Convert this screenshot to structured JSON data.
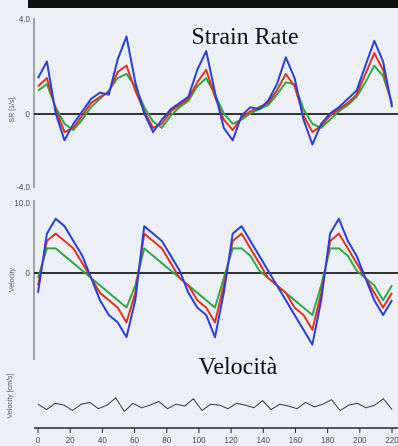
{
  "chart_data": [
    {
      "type": "line",
      "title": "Strain Rate",
      "ylabel": "SR [1/s]",
      "tick_labels": [
        "4.0",
        "0",
        "-4.0"
      ],
      "ylim": [
        -4,
        4
      ],
      "colors": {
        "blue": "#2a3fd6",
        "red": "#e0341e",
        "green": "#2ea84a"
      },
      "series": [
        {
          "values": [
            1.2,
            2.0,
            -0.5,
            -1.8,
            -1.0,
            -0.4,
            0.2,
            0.5,
            0.4,
            2.1,
            3.2,
            1.0,
            -0.5,
            -1.4,
            -0.8,
            -0.3,
            0.0,
            0.3,
            1.6,
            2.5,
            0.5,
            -1.2,
            -1.8,
            -0.6,
            -0.2,
            -0.3,
            0.1,
            0.9,
            2.2,
            1.2,
            -0.8,
            -2.0,
            -1.0,
            -0.5,
            -0.2,
            0.2,
            0.6,
            1.8,
            3.0,
            2.0,
            -0.2
          ]
        },
        {
          "values": [
            0.8,
            1.2,
            -0.3,
            -1.4,
            -1.2,
            -0.6,
            0.0,
            0.3,
            0.5,
            1.5,
            1.8,
            0.6,
            -0.4,
            -1.2,
            -1.0,
            -0.4,
            -0.1,
            0.2,
            1.0,
            1.6,
            0.3,
            -0.8,
            -1.3,
            -0.7,
            -0.4,
            -0.2,
            0.0,
            0.6,
            1.4,
            0.8,
            -0.6,
            -1.4,
            -1.1,
            -0.6,
            -0.3,
            0.0,
            0.4,
            1.4,
            2.4,
            1.6,
            -0.1
          ]
        },
        {
          "values": [
            0.6,
            0.9,
            -0.2,
            -1.0,
            -1.3,
            -0.8,
            -0.2,
            0.2,
            0.6,
            1.2,
            1.4,
            0.8,
            -0.2,
            -0.9,
            -1.2,
            -0.6,
            -0.2,
            0.1,
            0.8,
            1.2,
            0.4,
            -0.5,
            -1.0,
            -0.8,
            -0.5,
            -0.3,
            -0.1,
            0.4,
            1.0,
            0.9,
            -0.3,
            -1.0,
            -1.2,
            -0.8,
            -0.4,
            -0.1,
            0.3,
            1.0,
            1.8,
            1.3,
            0.0
          ]
        }
      ]
    },
    {
      "type": "line",
      "title": "",
      "ylabel": "Velocity",
      "tick_labels": [
        "10.0",
        "0"
      ],
      "ylim": [
        -10,
        10
      ],
      "series": [
        {
          "values": [
            -2,
            6,
            8,
            7,
            5,
            3,
            0,
            -3,
            -5,
            -6,
            -8,
            -3,
            7,
            6,
            5,
            3,
            1,
            -2,
            -4,
            -5,
            -8,
            -2,
            6,
            7,
            5,
            3,
            1,
            -1,
            -3,
            -5,
            -7,
            -9,
            -3,
            6,
            8,
            5,
            3,
            0,
            -3,
            -5,
            -3
          ]
        },
        {
          "values": [
            -1,
            5,
            6,
            5,
            4,
            2,
            0,
            -2,
            -3,
            -4,
            -6,
            -2,
            6,
            5,
            4,
            2,
            0,
            -1,
            -3,
            -4,
            -6,
            -1,
            5,
            6,
            4,
            2,
            0,
            -1,
            -2,
            -4,
            -5,
            -7,
            -2,
            5,
            6,
            4,
            2,
            0,
            -2,
            -4,
            -2
          ]
        },
        {
          "values": [
            0,
            4,
            4,
            3,
            2,
            1,
            0,
            -1,
            -2,
            -3,
            -4,
            -1,
            4,
            3,
            2,
            1,
            0,
            -1,
            -2,
            -3,
            -4,
            0,
            4,
            4,
            3,
            1,
            0,
            -1,
            -2,
            -3,
            -4,
            -5,
            -1,
            4,
            4,
            3,
            1,
            0,
            -1,
            -3,
            -1
          ]
        }
      ]
    },
    {
      "type": "line",
      "title": "Velocità",
      "ylabel": "Velocity [cm/s]",
      "x_tick_labels": [
        "0",
        "20",
        "40",
        "60",
        "80",
        "100",
        "120",
        "140",
        "160",
        "180",
        "200",
        "220"
      ],
      "series": [
        {
          "values": [
            0.2,
            -0.4,
            0.3,
            0.1,
            -0.5,
            0.2,
            0.4,
            -0.3,
            0.1,
            0.9,
            -0.6,
            0.3,
            -0.2,
            0.1,
            0.5,
            -0.3,
            0.2,
            0.0,
            0.8,
            -0.5,
            0.2,
            0.1,
            -0.3,
            0.3,
            0.1,
            -0.2,
            0.6,
            -0.4,
            0.2,
            0.0,
            -0.3,
            0.4,
            -0.1,
            0.2,
            0.7,
            -0.5,
            0.1,
            0.3,
            -0.2,
            0.1,
            0.8,
            -0.4
          ]
        }
      ]
    }
  ]
}
